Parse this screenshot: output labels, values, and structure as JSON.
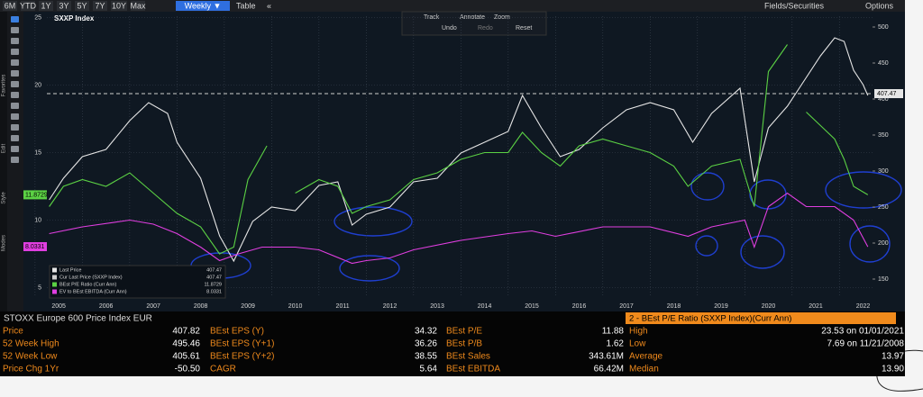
{
  "toolbar": {
    "ranges": [
      "6M",
      "YTD",
      "1Y",
      "3Y",
      "5Y",
      "7Y",
      "10Y",
      "Max"
    ],
    "frequency": "Weekly ▼",
    "table": "Table",
    "collapse": "«",
    "fields": "Fields/Securities",
    "options": "Options"
  },
  "chart_tools": [
    "Track",
    "Annotate",
    "Zoom",
    "Undo",
    "Redo",
    "Reset"
  ],
  "side_labels": [
    "Favorites",
    "Edit",
    "Style",
    "Modes"
  ],
  "chart_data": {
    "type": "line",
    "title": "SXXP Index",
    "xlim": [
      2005.25,
      2022.7
    ],
    "xticks": [
      2005,
      2006,
      2007,
      2008,
      2009,
      2010,
      2011,
      2012,
      2013,
      2014,
      2015,
      2016,
      2017,
      2018,
      2019,
      2020,
      2021,
      2022
    ],
    "ylim": [
      4.3,
      25.1
    ],
    "yticks": [
      5,
      10,
      15,
      20,
      25
    ],
    "y2lim": [
      125,
      515
    ],
    "y2ticks": [
      150,
      200,
      250,
      300,
      350,
      400,
      450,
      500
    ],
    "grid": true,
    "series": [
      {
        "name": "Last Price",
        "color": "#e6e6e6",
        "axis": "y2",
        "last": 407.47,
        "x": [
          2005.3,
          2005.6,
          2006.0,
          2006.5,
          2007.0,
          2007.4,
          2007.8,
          2008.0,
          2008.5,
          2008.9,
          2009.2,
          2009.6,
          2010.0,
          2010.5,
          2011.0,
          2011.4,
          2011.7,
          2012.0,
          2012.5,
          2013.0,
          2013.5,
          2014.0,
          2014.5,
          2015.0,
          2015.3,
          2015.7,
          2016.1,
          2016.5,
          2017.0,
          2017.5,
          2018.0,
          2018.5,
          2018.9,
          2019.3,
          2019.9,
          2020.2,
          2020.5,
          2020.9,
          2021.2,
          2021.6,
          2021.9,
          2022.1,
          2022.3,
          2022.5,
          2022.6
        ],
        "values": [
          260,
          290,
          320,
          330,
          370,
          395,
          380,
          340,
          290,
          210,
          175,
          230,
          250,
          245,
          280,
          285,
          225,
          240,
          250,
          285,
          290,
          325,
          340,
          355,
          405,
          360,
          320,
          330,
          360,
          385,
          395,
          385,
          340,
          380,
          415,
          285,
          360,
          390,
          420,
          460,
          485,
          480,
          440,
          420,
          405
        ]
      },
      {
        "name": "Cur Last Price (SXXP Index)",
        "color": "#cfcfcf",
        "axis": "y2",
        "dashed": true,
        "last": 407.47
      },
      {
        "name": "BEst P/E Ratio (Curr Ann)",
        "color": "#5bd144",
        "axis": "y",
        "last": 11.8729,
        "x": [
          2005.3,
          2005.6,
          2006.0,
          2006.5,
          2007.0,
          2007.5,
          2008.0,
          2008.5,
          2008.9,
          2009.2,
          2009.5,
          2009.9,
          2010.0,
          2010.5,
          2011.0,
          2011.4,
          2011.7,
          2012.0,
          2012.5,
          2013.0,
          2013.5,
          2014.0,
          2014.5,
          2015.0,
          2015.3,
          2015.7,
          2016.1,
          2016.5,
          2017.0,
          2017.5,
          2018.0,
          2018.5,
          2018.8,
          2019.3,
          2019.9,
          2020.2,
          2020.5,
          2020.9,
          2021.0,
          2021.3,
          2021.6,
          2021.9,
          2022.1,
          2022.3,
          2022.6
        ],
        "values": [
          11,
          12.5,
          13,
          12.5,
          13.5,
          12,
          10.5,
          9.5,
          7.5,
          8,
          13,
          15.5,
          null,
          12,
          13,
          12.5,
          10.5,
          11,
          11.5,
          13,
          13.5,
          14.5,
          15,
          15,
          16.5,
          15,
          14,
          15.5,
          16,
          15.5,
          15,
          14,
          12.5,
          14,
          14.5,
          11,
          21,
          23,
          null,
          18,
          17,
          16,
          14.5,
          12.5,
          11.87
        ]
      },
      {
        "name": "EV to BEst EBITDA (Curr Ann)",
        "color": "#e03ee0",
        "axis": "y",
        "last": 8.0331,
        "x": [
          2005.3,
          2006.0,
          2007.0,
          2007.5,
          2008.0,
          2008.5,
          2008.9,
          2009.3,
          2009.8,
          2010.5,
          2011.0,
          2011.7,
          2012.0,
          2012.5,
          2013.0,
          2014.0,
          2015.0,
          2015.5,
          2016.0,
          2017.0,
          2018.0,
          2018.8,
          2019.3,
          2020.0,
          2020.2,
          2020.5,
          2020.9,
          2021.3,
          2021.9,
          2022.3,
          2022.6
        ],
        "values": [
          9,
          9.5,
          10,
          9.7,
          9,
          8,
          7,
          7.5,
          8,
          8,
          7.8,
          6.8,
          7,
          7.2,
          7.8,
          8.5,
          9,
          9.2,
          8.8,
          9.5,
          9.5,
          8.8,
          9.5,
          10,
          8,
          11,
          12,
          11,
          11,
          10,
          8.03
        ]
      }
    ],
    "last_labels": [
      "407.47",
      "407.47",
      "11.8729",
      "8.0331"
    ]
  },
  "stats": {
    "title": "STOXX Europe 600 Price Index EUR",
    "pe_title": "2 - BEst P/E Ratio (SXXP Index)(Curr Ann)",
    "rows": [
      [
        "Price",
        "407.82",
        "BEst EPS (Y)",
        "34.32",
        "BEst P/E",
        "11.88",
        "High",
        "23.53 on 01/01/2021"
      ],
      [
        "52 Week High",
        "495.46",
        "BEst EPS (Y+1)",
        "36.26",
        "BEst P/B",
        "1.62",
        "Low",
        "7.69 on 11/21/2008"
      ],
      [
        "52 Week Low",
        "405.61",
        "BEst EPS (Y+2)",
        "38.55",
        "BEst Sales",
        "343.61M",
        "Average",
        "13.97"
      ],
      [
        "Price Chg 1Yr",
        "-50.50",
        "CAGR",
        "5.64",
        "BEst EBITDA",
        "66.42M",
        "Median",
        "13.90"
      ]
    ]
  }
}
